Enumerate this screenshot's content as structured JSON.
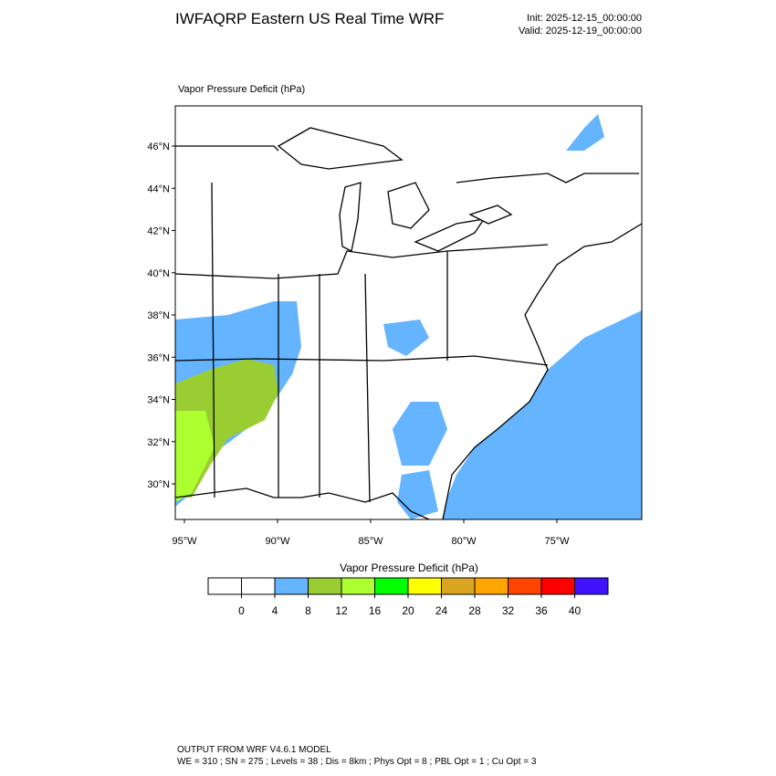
{
  "header": {
    "title": "IWFAQRP Eastern US Real Time WRF",
    "init": "Init: 2025-12-15_00:00:00",
    "valid": "Valid: 2025-12-19_00:00:00"
  },
  "map": {
    "field_label": "Vapor Pressure Deficit   (hPa)",
    "lat_labels": [
      "46°N",
      "44°N",
      "42°N",
      "40°N",
      "38°N",
      "36°N",
      "34°N",
      "32°N",
      "30°N"
    ],
    "lon_labels": [
      "95°W",
      "90°W",
      "85°W",
      "80°W",
      "75°W"
    ]
  },
  "colorbar": {
    "title": "Vapor Pressure Deficit  (hPa)",
    "colors": [
      "#ffffff",
      "#ffffff",
      "#64b4ff",
      "#9acd32",
      "#adff2f",
      "#00ff00",
      "#ffff00",
      "#daa520",
      "#ffa500",
      "#ff4500",
      "#ff0000",
      "#4012ff"
    ],
    "ticks": [
      0,
      4,
      8,
      12,
      16,
      20,
      24,
      28,
      32,
      36,
      40
    ]
  },
  "footer": {
    "line1": "OUTPUT FROM WRF V4.6.1 MODEL",
    "line2": "WE = 310 ; SN = 275 ; Levels = 38 ; Dis = 8km ; Phys Opt = 8 ; PBL Opt = 1 ; Cu Opt = 3"
  }
}
